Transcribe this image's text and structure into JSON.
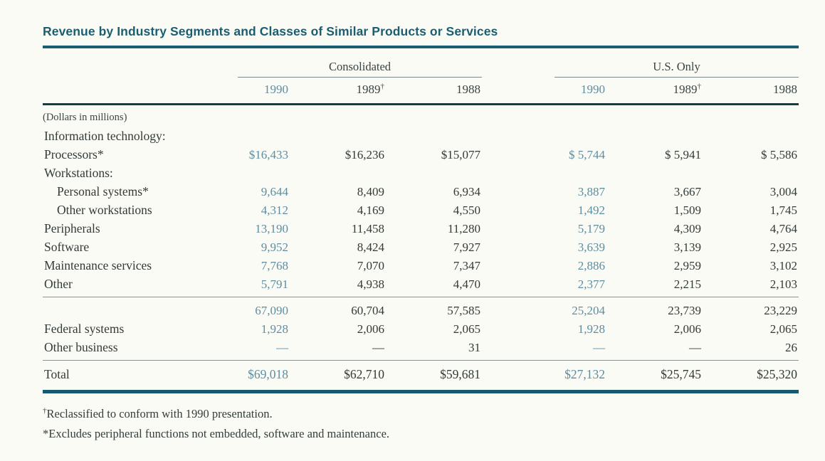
{
  "page_title": "Revenue by Industry Segments and Classes of Similar Products or Services",
  "colors": {
    "accent-teal": "#5e8da0",
    "title-teal": "#1a5e72",
    "rule-dark": "#123f4c",
    "rule-bottom": "#155a6e"
  },
  "header": {
    "groups": [
      {
        "label": "Consolidated",
        "years": [
          {
            "text": "1990"
          },
          {
            "text": "1989",
            "sup": "†"
          },
          {
            "text": "1988"
          }
        ]
      },
      {
        "label": "U.S. Only",
        "years": [
          {
            "text": "1990"
          },
          {
            "text": "1989",
            "sup": "†"
          },
          {
            "text": "1988"
          }
        ]
      }
    ]
  },
  "table": {
    "unit_note": "(Dollars in millions)",
    "rows": [
      {
        "label": "Information technology:"
      },
      {
        "label": "Processors*",
        "cells": [
          "$16,433",
          "$16,236",
          "$15,077",
          "$ 5,744",
          "$ 5,941",
          "$ 5,586"
        ]
      },
      {
        "label": "Workstations:"
      },
      {
        "label": "Personal systems*",
        "cells": [
          "9,644",
          "8,409",
          "6,934",
          "3,887",
          "3,667",
          "3,004"
        ]
      },
      {
        "label": "Other workstations",
        "cells": [
          "4,312",
          "4,169",
          "4,550",
          "1,492",
          "1,509",
          "1,745"
        ]
      },
      {
        "label": "Peripherals",
        "cells": [
          "13,190",
          "11,458",
          "11,280",
          "5,179",
          "4,309",
          "4,764"
        ]
      },
      {
        "label": "Software",
        "cells": [
          "9,952",
          "8,424",
          "7,927",
          "3,639",
          "3,139",
          "2,925"
        ]
      },
      {
        "label": "Maintenance services",
        "cells": [
          "7,768",
          "7,070",
          "7,347",
          "2,886",
          "2,959",
          "3,102"
        ]
      },
      {
        "label": "Other",
        "cells": [
          "5,791",
          "4,938",
          "4,470",
          "2,377",
          "2,215",
          "2,103"
        ]
      },
      {
        "label": "",
        "cells": [
          "67,090",
          "60,704",
          "57,585",
          "25,204",
          "23,739",
          "23,229"
        ]
      },
      {
        "label": "Federal systems",
        "cells": [
          "1,928",
          "2,006",
          "2,065",
          "1,928",
          "2,006",
          "2,065"
        ]
      },
      {
        "label": "Other business",
        "cells": [
          "—",
          "—",
          "31",
          "—",
          "—",
          "26"
        ]
      },
      {
        "label": "Total",
        "cells": [
          "$69,018",
          "$62,710",
          "$59,681",
          "$27,132",
          "$25,745",
          "$25,320"
        ]
      }
    ]
  },
  "footnotes": [
    {
      "marker": "†",
      "text": "Reclassified to conform with 1990 presentation."
    },
    {
      "marker": "*",
      "text": "Excludes peripheral functions not embedded, software and maintenance."
    }
  ]
}
